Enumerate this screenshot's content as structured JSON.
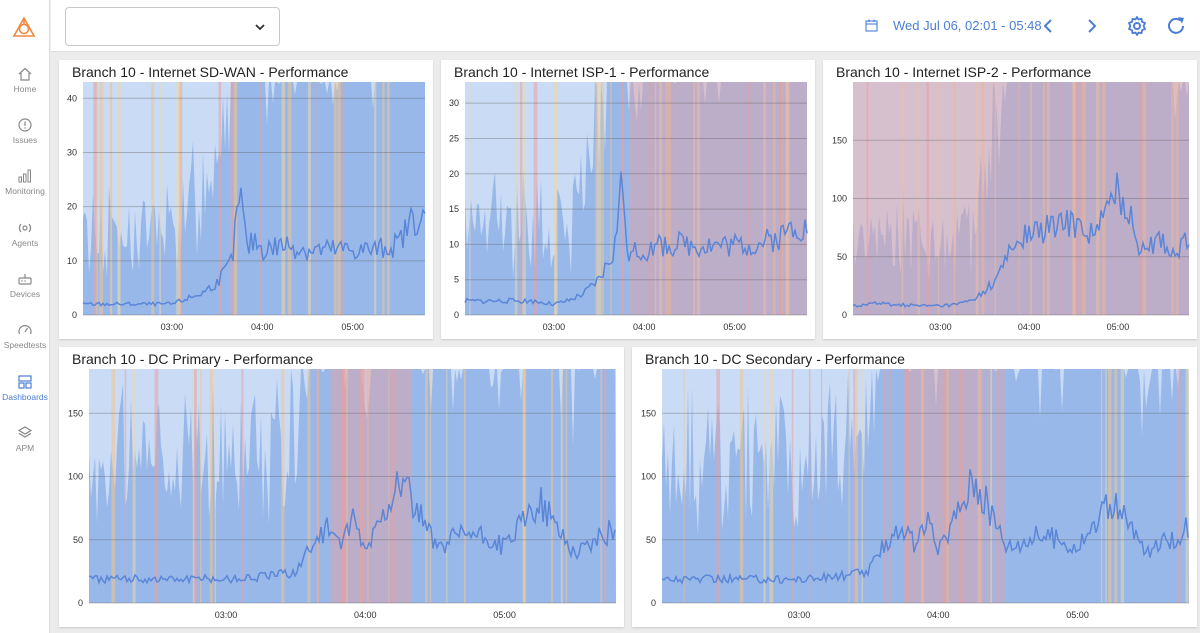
{
  "nav": {
    "items": [
      {
        "id": "home",
        "label": "Home",
        "icon": "home-icon"
      },
      {
        "id": "issues",
        "label": "Issues",
        "icon": "alert-circle-icon"
      },
      {
        "id": "monitoring",
        "label": "Monitoring",
        "icon": "bar-chart-icon"
      },
      {
        "id": "agents",
        "label": "Agents",
        "icon": "agent-broadcast-icon"
      },
      {
        "id": "devices",
        "label": "Devices",
        "icon": "router-icon"
      },
      {
        "id": "speedtests",
        "label": "Speedtests",
        "icon": "speedometer-icon"
      },
      {
        "id": "dashboards",
        "label": "Dashboards",
        "icon": "dashboard-icon",
        "active": true
      },
      {
        "id": "apm",
        "label": "APM",
        "icon": "layers-icon"
      }
    ]
  },
  "header": {
    "dropdown_value": "",
    "date_range": "Wed Jul 06, 02:01 - 05:48"
  },
  "colors": {
    "accent": "#4a7ed6",
    "line": "#5b86d8",
    "fill_dark": "#8fb2e8",
    "fill_light": "#c9dbf5",
    "alert_red": "#e8a0a0",
    "alert_orange": "#f2c58c",
    "alert_beige": "#eed7a9"
  },
  "panels": [
    {
      "title": "Branch 10 - Internet SD-WAN - Performance",
      "chart_data": {
        "type": "area",
        "x_ticks": [
          "03:00",
          "04:00",
          "05:00"
        ],
        "y_ticks": [
          0,
          10,
          20,
          30,
          40
        ],
        "ylim": [
          0,
          43
        ],
        "xlim": [
          "02:01",
          "05:48"
        ],
        "series": [
          {
            "x": [
              "02:01",
              "02:15",
              "02:30",
              "02:45",
              "03:00",
              "03:10",
              "03:20",
              "03:30",
              "03:40",
              "03:45",
              "03:50",
              "03:55",
              "04:00",
              "04:15",
              "04:30",
              "04:45",
              "05:00",
              "05:15",
              "05:30",
              "05:40",
              "05:48"
            ],
            "values": [
              2,
              2,
              2,
              2,
              2,
              3,
              4,
              6,
              10,
              23,
              12,
              14,
              12,
              13,
              12,
              12,
              12,
              12,
              13,
              18,
              17
            ]
          }
        ]
      }
    },
    {
      "title": "Branch 10 - Internet ISP-1 - Performance",
      "chart_data": {
        "type": "area",
        "x_ticks": [
          "03:00",
          "04:00",
          "05:00"
        ],
        "y_ticks": [
          0,
          5,
          10,
          15,
          20,
          25,
          30
        ],
        "ylim": [
          0,
          33
        ],
        "xlim": [
          "02:01",
          "05:48"
        ],
        "series": [
          {
            "x": [
              "02:01",
              "02:15",
              "02:30",
              "02:45",
              "03:00",
              "03:10",
              "03:20",
              "03:30",
              "03:40",
              "03:45",
              "03:50",
              "03:55",
              "04:00",
              "04:15",
              "04:30",
              "04:45",
              "05:00",
              "05:15",
              "05:30",
              "05:40",
              "05:48"
            ],
            "values": [
              2,
              2,
              2,
              2,
              1.5,
              2,
              3,
              5,
              9,
              19,
              8,
              9,
              9,
              10,
              10,
              10,
              10,
              10,
              11,
              13,
              12
            ]
          }
        ]
      }
    },
    {
      "title": "Branch 10 - Internet ISP-2 - Performance",
      "chart_data": {
        "type": "area",
        "x_ticks": [
          "03:00",
          "04:00",
          "05:00"
        ],
        "y_ticks": [
          0,
          50,
          100,
          150
        ],
        "ylim": [
          0,
          200
        ],
        "xlim": [
          "02:01",
          "05:48"
        ],
        "series": [
          {
            "x": [
              "02:01",
              "02:15",
              "02:30",
              "02:45",
              "03:00",
              "03:10",
              "03:20",
              "03:30",
              "03:40",
              "03:45",
              "03:50",
              "03:55",
              "04:00",
              "04:15",
              "04:30",
              "04:45",
              "05:00",
              "05:15",
              "05:30",
              "05:40",
              "05:48"
            ],
            "values": [
              8,
              10,
              9,
              8,
              8,
              9,
              12,
              20,
              35,
              50,
              60,
              65,
              70,
              75,
              80,
              70,
              110,
              60,
              65,
              50,
              70
            ]
          }
        ]
      }
    },
    {
      "title": "Branch 10 - DC Primary - Performance",
      "chart_data": {
        "type": "area",
        "x_ticks": [
          "03:00",
          "04:00",
          "05:00"
        ],
        "y_ticks": [
          0,
          50,
          100,
          150
        ],
        "ylim": [
          0,
          185
        ],
        "xlim": [
          "02:01",
          "05:48"
        ],
        "series": [
          {
            "x": [
              "02:01",
              "02:15",
              "02:30",
              "02:45",
              "03:00",
              "03:10",
              "03:20",
              "03:30",
              "03:40",
              "03:45",
              "03:50",
              "03:55",
              "04:00",
              "04:15",
              "04:30",
              "04:45",
              "05:00",
              "05:15",
              "05:30",
              "05:40",
              "05:48"
            ],
            "values": [
              19,
              19,
              19,
              19,
              19,
              20,
              22,
              25,
              55,
              60,
              45,
              65,
              40,
              100,
              45,
              55,
              45,
              80,
              40,
              50,
              60
            ]
          }
        ]
      }
    },
    {
      "title": "Branch 10 - DC Secondary - Performance",
      "chart_data": {
        "type": "area",
        "x_ticks": [
          "03:00",
          "04:00",
          "05:00"
        ],
        "y_ticks": [
          0,
          50,
          100,
          150
        ],
        "ylim": [
          0,
          185
        ],
        "xlim": [
          "02:01",
          "05:48"
        ],
        "series": [
          {
            "x": [
              "02:01",
              "02:15",
              "02:30",
              "02:45",
              "03:00",
              "03:10",
              "03:20",
              "03:30",
              "03:40",
              "03:45",
              "03:50",
              "03:55",
              "04:00",
              "04:15",
              "04:30",
              "04:45",
              "05:00",
              "05:15",
              "05:30",
              "05:40",
              "05:48"
            ],
            "values": [
              19,
              19,
              19,
              19,
              19,
              20,
              22,
              25,
              55,
              60,
              45,
              65,
              40,
              100,
              45,
              55,
              45,
              80,
              40,
              50,
              60
            ]
          }
        ]
      }
    }
  ]
}
